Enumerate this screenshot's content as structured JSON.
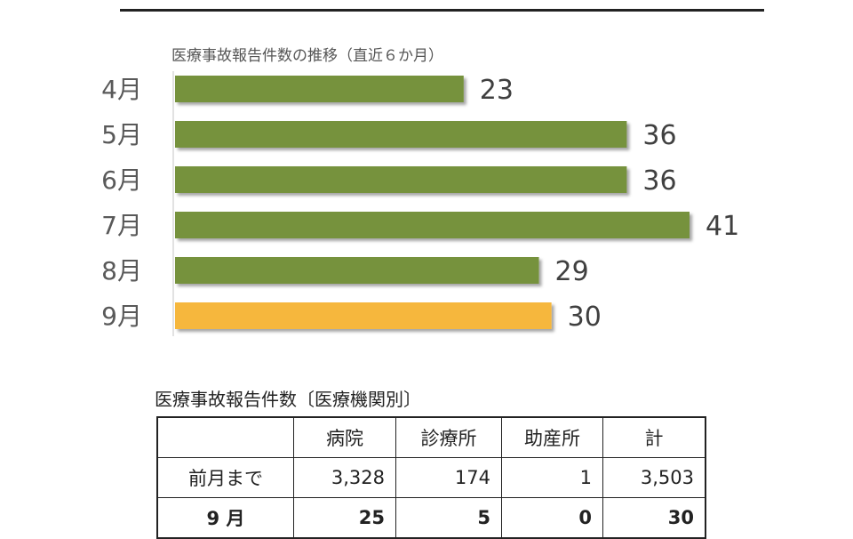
{
  "chart_data": {
    "type": "bar",
    "orientation": "horizontal",
    "title": "医療事故報告件数の推移（直近６か月）",
    "categories": [
      "4月",
      "5月",
      "6月",
      "7月",
      "8月",
      "9月"
    ],
    "values": [
      23,
      36,
      36,
      41,
      29,
      30
    ],
    "colors": [
      "#76923c",
      "#76923c",
      "#76923c",
      "#76923c",
      "#76923c",
      "#f6b73c"
    ],
    "xlim": [
      0,
      41
    ],
    "grid": false,
    "legend": "none"
  },
  "table": {
    "title": "医療事故報告件数〔医療機関別〕",
    "headers": [
      "",
      "病院",
      "診療所",
      "助産所",
      "計"
    ],
    "rows": [
      [
        "前月まで",
        "3,328",
        "174",
        "1",
        "3,503"
      ],
      [
        "9 月",
        "25",
        "5",
        "0",
        "30"
      ]
    ]
  }
}
